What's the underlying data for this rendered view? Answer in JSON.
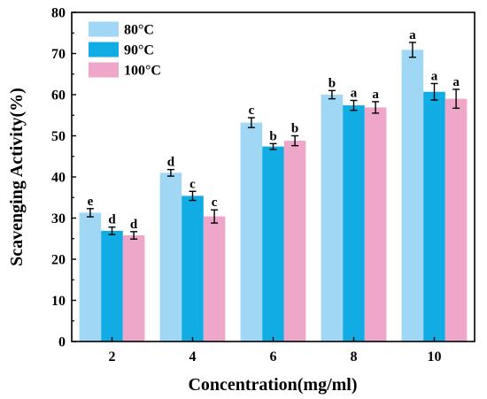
{
  "chart_data": {
    "type": "bar",
    "title": "",
    "xlabel": "Concentration(mg/ml)",
    "ylabel": "Scavenging Activity(%)",
    "ylim": [
      0,
      80
    ],
    "yticks": [
      0,
      10,
      20,
      30,
      40,
      50,
      60,
      70,
      80
    ],
    "categories": [
      "2",
      "4",
      "6",
      "8",
      "10"
    ],
    "legend_position": "top-left",
    "grid": false,
    "series": [
      {
        "name": "80°C",
        "color": "#9fd7f5",
        "values": [
          31.3,
          41.0,
          53.2,
          60.0,
          70.9
        ],
        "errors": [
          1.0,
          0.8,
          1.2,
          1.0,
          1.8
        ],
        "letters": [
          "e",
          "d",
          "c",
          "b",
          "a"
        ]
      },
      {
        "name": "90°C",
        "color": "#12ace5",
        "values": [
          26.9,
          35.4,
          47.4,
          57.4,
          60.7
        ],
        "errors": [
          0.9,
          1.1,
          0.7,
          1.2,
          2.0
        ],
        "letters": [
          "d",
          "c",
          "b",
          "a",
          "a"
        ]
      },
      {
        "name": "100°C",
        "color": "#eea7c8",
        "values": [
          25.8,
          30.4,
          48.8,
          56.9,
          59.0
        ],
        "errors": [
          0.9,
          1.6,
          1.2,
          1.4,
          2.3
        ],
        "letters": [
          "d",
          "c",
          "b",
          "a",
          "a"
        ]
      }
    ]
  }
}
